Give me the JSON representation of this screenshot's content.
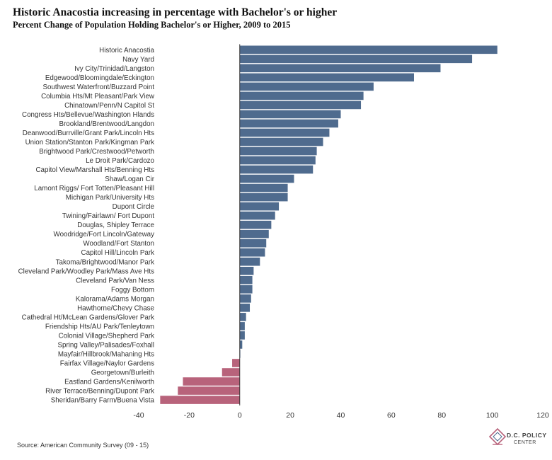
{
  "title": "Historic Anacostia increasing in percentage with Bachelor's or higher",
  "subtitle": "Percent Change of Population Holding Bachelor's or Higher, 2009 to 2015",
  "source": "Source: American Community Survey (09 - 15)",
  "logo": {
    "line1": "D.C. POLICY",
    "line2": "CENTER",
    "icon": "dc-map-icon"
  },
  "colors": {
    "positive": "#4f6b8e",
    "negative": "#b8637b",
    "axis": "#333333"
  },
  "chart_data": {
    "type": "bar",
    "orientation": "horizontal",
    "xlim": [
      -40,
      120
    ],
    "xticks": [
      -40,
      -20,
      0,
      20,
      40,
      60,
      80,
      100,
      120
    ],
    "grid": false,
    "categories": [
      "Historic Anacostia",
      "Navy Yard",
      "Ivy City/Trinidad/Langston",
      "Edgewood/Bloomingdale/Eckington",
      "Southwest Waterfront/Buzzard Point",
      "Columbia Hts/Mt Pleasant/Park View",
      "Chinatown/Penn/N Capitol St",
      "Congress Hts/Bellevue/Washington Hlands",
      "Brookland/Brentwood/Langdon",
      "Deanwood/Burrville/Grant Park/Lincoln Hts",
      "Union Station/Stanton Park/Kingman Park",
      "Brightwood Park/Crestwood/Petworth",
      "Le Droit Park/Cardozo",
      "Capitol View/Marshall Hts/Benning Hts",
      "Shaw/Logan Cir",
      "Lamont Riggs/ Fort Totten/Pleasant Hill",
      "Michigan Park/University Hts",
      "Dupont Circle",
      "Twining/Fairlawn/ Fort Dupont",
      "Douglas, Shipley Terrace",
      "Woodridge/Fort Lincoln/Gateway",
      "Woodland/Fort Stanton",
      "Capitol Hill/Lincoln Park",
      "Takoma/Brightwood/Manor Park",
      "Cleveland Park/Woodley Park/Mass Ave Hts",
      "Cleveland Park/Van Ness",
      "Foggy Bottom",
      "Kalorama/Adams Morgan",
      "Hawthorne/Chevy Chase",
      "Cathedral Ht/McLean Gardens/Glover Park",
      "Friendship Hts/AU Park/Tenleytown",
      "Colonial Village/Shepherd Park",
      "Spring Valley/Palisades/Foxhall",
      "Mayfair/Hillbrook/Mahaning Hts",
      "Fairfax Village/Naylor Gardens",
      "Georgetown/Burleith",
      "Eastland Gardens/Kenilworth",
      "River Terrace/Benning/Dupont Park",
      "Sheridan/Barry Farm/Buena Vista"
    ],
    "values": [
      102,
      92,
      79.5,
      69,
      53,
      49,
      48,
      40,
      39,
      35.5,
      33,
      30.5,
      30,
      29,
      21.5,
      19,
      19,
      15.5,
      14,
      12.5,
      11.5,
      10.5,
      10,
      8,
      5.5,
      5,
      5,
      4.5,
      4,
      2.5,
      2,
      2,
      1,
      0.2,
      -3,
      -7,
      -22.5,
      -24.5,
      -31.5
    ]
  }
}
